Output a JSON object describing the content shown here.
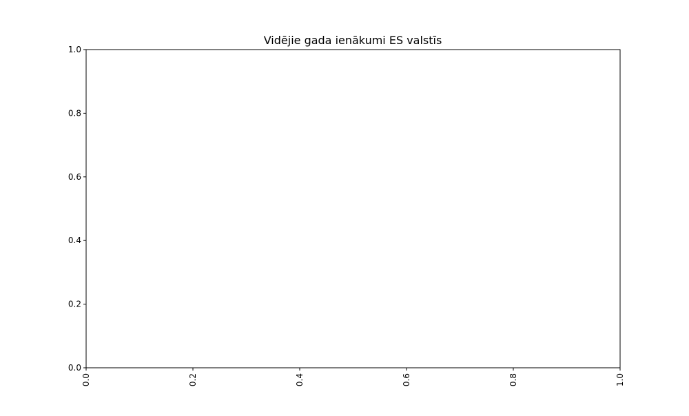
{
  "chart_data": {
    "type": "bar",
    "title": "Vidējie gada ienākumi ES valstīs",
    "xlabel": "",
    "ylabel": "",
    "categories": [],
    "values": [],
    "xlim": [
      0.0,
      1.0
    ],
    "ylim": [
      0.0,
      1.0
    ],
    "x_ticks": [
      "0.0",
      "0.2",
      "0.4",
      "0.6",
      "0.8",
      "1.0"
    ],
    "y_ticks": [
      "0.0",
      "0.2",
      "0.4",
      "0.6",
      "0.8",
      "1.0"
    ],
    "x_tick_rotation": "vertical",
    "grid": false,
    "legend": "none",
    "colors": {
      "axis": "#000000",
      "background": "#ffffff"
    }
  }
}
